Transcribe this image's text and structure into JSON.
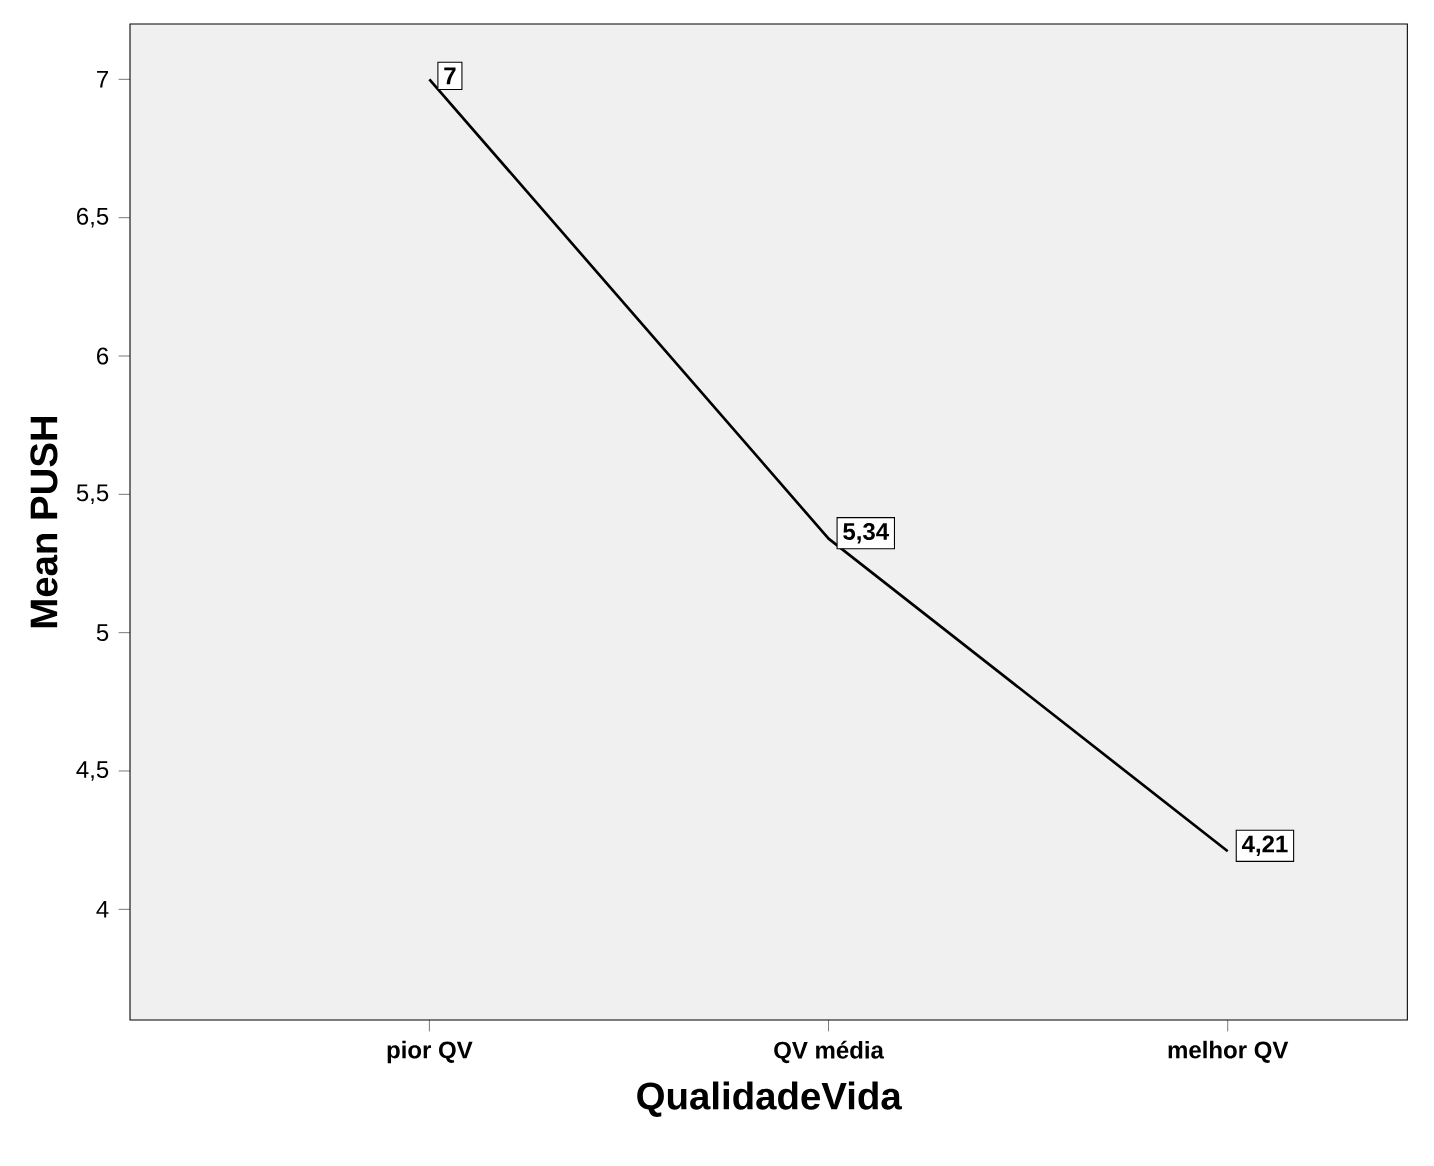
{
  "chart_data": {
    "type": "line",
    "xlabel": "QualidadeVida",
    "ylabel": "Mean PUSH",
    "categories": [
      "pior QV",
      "QV média",
      "melhor QV"
    ],
    "series": [
      {
        "color": "#000000",
        "values": [
          7,
          5.34,
          4.21
        ],
        "value_labels": [
          "7",
          "5,34",
          "4,21"
        ]
      }
    ],
    "ylim": [
      3.6,
      7.2
    ],
    "yticks": [
      4,
      {
        "value": 4.5,
        "label": "4,5"
      },
      5,
      {
        "value": 5.5,
        "label": "5,5"
      },
      6,
      {
        "value": 6.5,
        "label": "6,5"
      },
      7
    ],
    "line_style": "solid"
  }
}
